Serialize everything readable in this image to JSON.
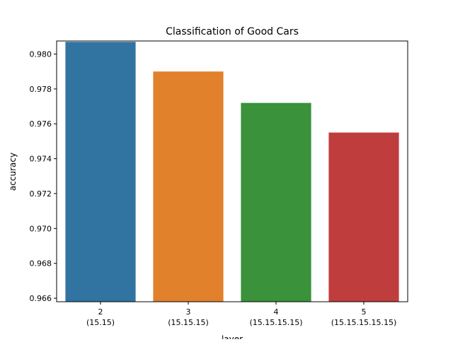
{
  "chart_data": {
    "type": "bar",
    "title": "Classification of Good Cars",
    "xlabel": "layer",
    "ylabel": "accuracy",
    "categories": [
      [
        "2",
        "(15.15)"
      ],
      [
        "3",
        "(15.15.15)"
      ],
      [
        "4",
        "(15.15.15.15)"
      ],
      [
        "5",
        "(15.15.15.15.15)"
      ]
    ],
    "values": [
      0.9807,
      0.979,
      0.9772,
      0.9755
    ],
    "colors": [
      "#3274a1",
      "#e1812c",
      "#3a923a",
      "#c03d3e"
    ],
    "ylim": [
      0.9658,
      0.98075
    ],
    "yticks": [
      0.966,
      0.968,
      0.97,
      0.972,
      0.974,
      0.976,
      0.978,
      0.98
    ],
    "ytick_labels": [
      "0.966",
      "0.968",
      "0.970",
      "0.972",
      "0.974",
      "0.976",
      "0.978",
      "0.980"
    ],
    "grid": false,
    "legend": "none"
  }
}
